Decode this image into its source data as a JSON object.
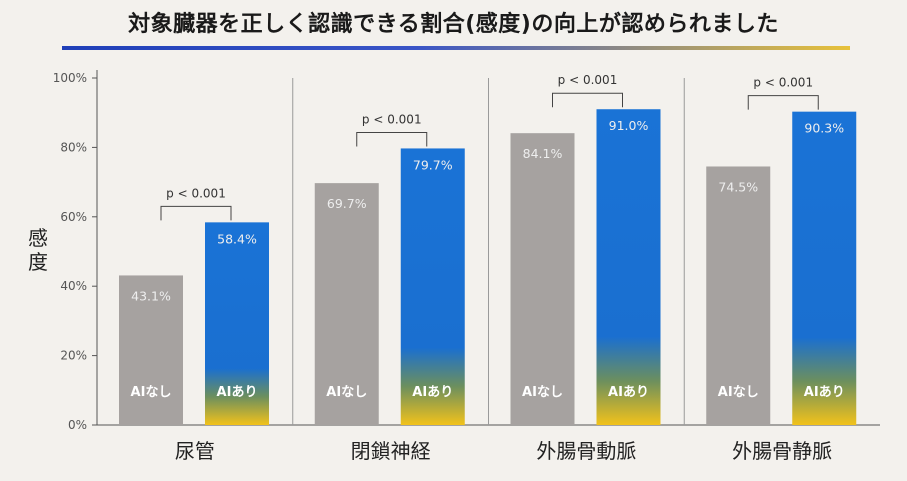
{
  "title": "対象臓器を正しく認識できる割合(感度)の向上が認められました",
  "colors": {
    "bar_no_ai": "#a6a2a0",
    "bar_ai_top": "#1a73d6",
    "bar_ai_bottom": "#f2c21b",
    "grid_divider": "#9a9a9a",
    "background": "#f3f1ed"
  },
  "chart_data": {
    "type": "bar",
    "ylabel": "感度",
    "ylim": [
      0,
      100
    ],
    "yticks": [
      "0%",
      "20%",
      "40%",
      "60%",
      "80%",
      "100%"
    ],
    "categories": [
      "尿管",
      "閉鎖神経",
      "外腸骨動脈",
      "外腸骨静脈"
    ],
    "series": [
      {
        "name": "AIなし",
        "values": [
          43.1,
          69.7,
          84.1,
          74.5
        ],
        "labels": [
          "43.1%",
          "69.7%",
          "84.1%",
          "74.5%"
        ]
      },
      {
        "name": "AIあり",
        "values": [
          58.4,
          79.7,
          91.0,
          90.3
        ],
        "labels": [
          "58.4%",
          "79.7%",
          "91.0%",
          "90.3%"
        ]
      }
    ],
    "significance": [
      "p < 0.001",
      "p < 0.001",
      "p < 0.001",
      "p < 0.001"
    ],
    "grid": false,
    "legend": "inside-bars"
  }
}
